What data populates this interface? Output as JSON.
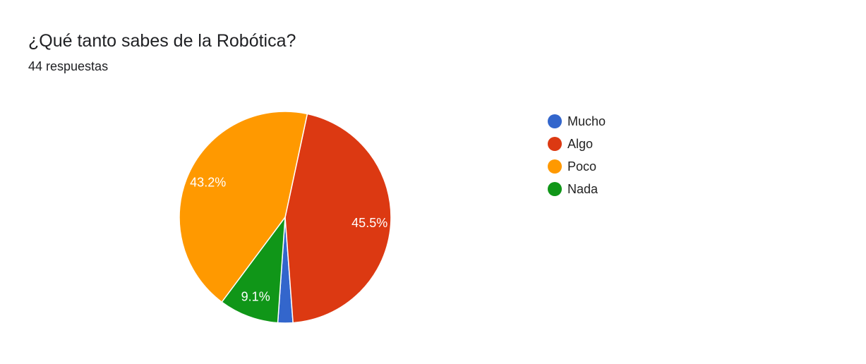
{
  "card": {
    "title": "¿Qué tanto sabes de la Robótica?",
    "subtitle": "44 respuestas"
  },
  "chart_data": {
    "type": "pie",
    "categories": [
      "Mucho",
      "Algo",
      "Poco",
      "Nada"
    ],
    "values": [
      2.3,
      45.5,
      43.2,
      9.1
    ],
    "data_labels": [
      "",
      "45.5%",
      "43.2%",
      "9.1%"
    ],
    "colors": [
      "#3366cc",
      "#dc3912",
      "#ff9900",
      "#109618"
    ],
    "legend_position": "right",
    "start_angle_deg": 94,
    "direction": "clockwise"
  }
}
